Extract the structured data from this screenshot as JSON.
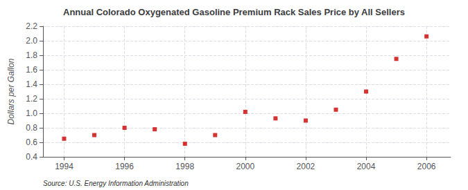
{
  "chart_data": {
    "type": "scatter",
    "title": "Annual Colorado Oxygenated Gasoline Premium Rack Sales Price by All Sellers",
    "ylabel": "Dollars per Gallon",
    "source": "Source: U.S. Energy Information Administration",
    "x": [
      1994,
      1995,
      1996,
      1997,
      1998,
      1999,
      2000,
      2001,
      2002,
      2003,
      2004,
      2005,
      2006
    ],
    "values": [
      0.65,
      0.7,
      0.8,
      0.78,
      0.58,
      0.7,
      1.02,
      0.93,
      0.9,
      1.05,
      1.3,
      1.75,
      2.06
    ],
    "color": "#cc0000",
    "marker": "square",
    "xlim": [
      1993.3,
      2006.8
    ],
    "xticks": [
      1994,
      1996,
      1998,
      2000,
      2002,
      2004,
      2006
    ],
    "ylim": [
      0.4,
      2.2
    ],
    "yticks": [
      0.4,
      0.6,
      0.8,
      {
        "value": 1.0,
        "label": "1.0"
      },
      1.2,
      1.4,
      1.6,
      1.8,
      {
        "value": 2.0,
        "label": "2.0"
      },
      2.2
    ],
    "grid": true
  }
}
